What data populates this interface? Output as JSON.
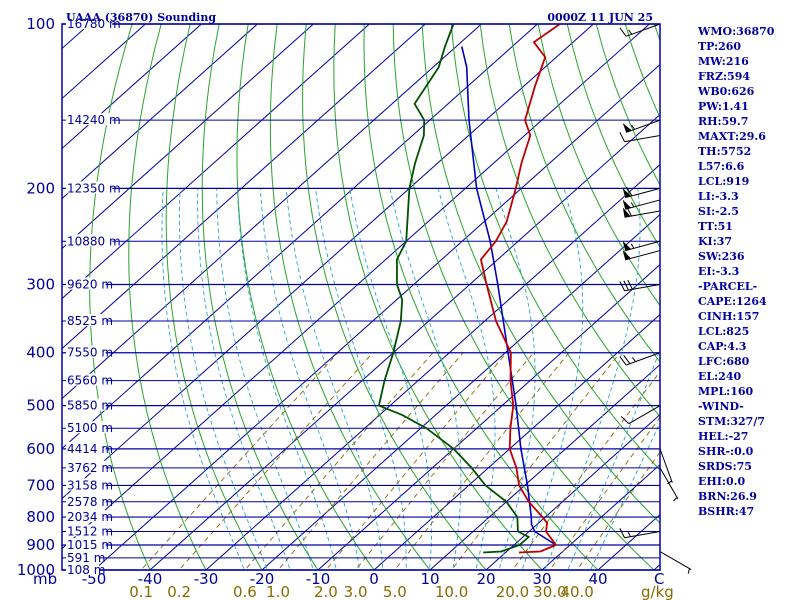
{
  "header": {
    "station_title": "UAAA (36870) Sounding",
    "time_title": "0000Z 11 JUN 25"
  },
  "colors": {
    "frame": "#0000a0",
    "isobar": "#0000a0",
    "isotherm": "#0000a0",
    "dry_adiabat": "#2aa52a",
    "moist_adiabat": "#2aa5c8",
    "mixing_ratio": "#8a6a00",
    "temperature": "#c00000",
    "dewpoint": "#005000",
    "parcel": "#0000c0",
    "wind": "#000000"
  },
  "chart_data": {
    "type": "skew-t",
    "pressure_unit_label": "mb",
    "pressure_ticks": [
      100,
      200,
      300,
      400,
      500,
      600,
      700,
      800,
      900,
      1000
    ],
    "temperature_ticks": [
      "-50",
      "-40",
      "-30",
      "-20",
      "-10",
      "0",
      "10",
      "20",
      "30",
      "40"
    ],
    "temperature_unit_label": "C",
    "mixing_ratio_ticks": [
      "0.1",
      "0.2",
      "0.6",
      "1.0",
      "2.0",
      "3.0",
      "5.0",
      "10.0",
      "20.0",
      "30.0",
      "40.0"
    ],
    "mixing_ratio_unit_label": "g/kg",
    "height_labels": [
      {
        "p": 100,
        "text": "16780 m"
      },
      {
        "p": 150,
        "text": "14240 m"
      },
      {
        "p": 200,
        "text": "12350 m"
      },
      {
        "p": 250,
        "text": "10880 m"
      },
      {
        "p": 300,
        "text": "9620 m"
      },
      {
        "p": 350,
        "text": "8525 m"
      },
      {
        "p": 400,
        "text": "7550 m"
      },
      {
        "p": 450,
        "text": "6560 m"
      },
      {
        "p": 500,
        "text": "5850 m"
      },
      {
        "p": 550,
        "text": "5100 m"
      },
      {
        "p": 600,
        "text": "4414 m"
      },
      {
        "p": 650,
        "text": "3762 m"
      },
      {
        "p": 700,
        "text": "3158 m"
      },
      {
        "p": 750,
        "text": "2578 m"
      },
      {
        "p": 800,
        "text": "2034 m"
      },
      {
        "p": 850,
        "text": "1512 m"
      },
      {
        "p": 900,
        "text": "1015 m"
      },
      {
        "p": 950,
        "text": "591 m"
      },
      {
        "p": 1000,
        "text": "108 m"
      }
    ],
    "temperature_profile": [
      {
        "p": 929,
        "t": 22.4
      },
      {
        "p": 925,
        "t": 26.0
      },
      {
        "p": 900,
        "t": 27.5
      },
      {
        "p": 850,
        "t": 23.0
      },
      {
        "p": 820,
        "t": 21.5
      },
      {
        "p": 800,
        "t": 19.5
      },
      {
        "p": 750,
        "t": 14.0
      },
      {
        "p": 700,
        "t": 9.0
      },
      {
        "p": 650,
        "t": 5.0
      },
      {
        "p": 600,
        "t": 0.0
      },
      {
        "p": 550,
        "t": -4.0
      },
      {
        "p": 500,
        "t": -8.0
      },
      {
        "p": 450,
        "t": -13.5
      },
      {
        "p": 400,
        "t": -19.0
      },
      {
        "p": 350,
        "t": -28.0
      },
      {
        "p": 300,
        "t": -37.0
      },
      {
        "p": 270,
        "t": -43.0
      },
      {
        "p": 250,
        "t": -44.0
      },
      {
        "p": 230,
        "t": -46.0
      },
      {
        "p": 200,
        "t": -51.0
      },
      {
        "p": 180,
        "t": -55.0
      },
      {
        "p": 160,
        "t": -59.0
      },
      {
        "p": 150,
        "t": -63.0
      },
      {
        "p": 130,
        "t": -68.0
      },
      {
        "p": 115,
        "t": -72.0
      },
      {
        "p": 108,
        "t": -77.0
      },
      {
        "p": 100,
        "t": -76.0
      }
    ],
    "dewpoint_profile": [
      {
        "p": 929,
        "t": 16.0
      },
      {
        "p": 925,
        "t": 19.0
      },
      {
        "p": 900,
        "t": 21.0
      },
      {
        "p": 870,
        "t": 21.0
      },
      {
        "p": 850,
        "t": 18.0
      },
      {
        "p": 800,
        "t": 15.0
      },
      {
        "p": 750,
        "t": 10.0
      },
      {
        "p": 700,
        "t": 3.0
      },
      {
        "p": 650,
        "t": -3.0
      },
      {
        "p": 600,
        "t": -10.0
      },
      {
        "p": 550,
        "t": -19.0
      },
      {
        "p": 520,
        "t": -26.0
      },
      {
        "p": 500,
        "t": -32.0
      },
      {
        "p": 450,
        "t": -36.0
      },
      {
        "p": 400,
        "t": -40.0
      },
      {
        "p": 350,
        "t": -45.0
      },
      {
        "p": 320,
        "t": -49.0
      },
      {
        "p": 300,
        "t": -53.0
      },
      {
        "p": 270,
        "t": -58.0
      },
      {
        "p": 250,
        "t": -60.0
      },
      {
        "p": 200,
        "t": -70.0
      },
      {
        "p": 180,
        "t": -74.0
      },
      {
        "p": 160,
        "t": -78.0
      },
      {
        "p": 150,
        "t": -81.0
      },
      {
        "p": 140,
        "t": -86.0
      },
      {
        "p": 120,
        "t": -89.0
      },
      {
        "p": 110,
        "t": -92.0
      },
      {
        "p": 100,
        "t": -95.0
      }
    ],
    "parcel_profile": [
      {
        "p": 900,
        "t": 27.5
      },
      {
        "p": 850,
        "t": 21.0
      },
      {
        "p": 825,
        "t": 19.0
      },
      {
        "p": 800,
        "t": 17.5
      },
      {
        "p": 700,
        "t": 10.5
      },
      {
        "p": 600,
        "t": 2.0
      },
      {
        "p": 500,
        "t": -7.5
      },
      {
        "p": 400,
        "t": -19.5
      },
      {
        "p": 300,
        "t": -35.0
      },
      {
        "p": 250,
        "t": -45.0
      },
      {
        "p": 200,
        "t": -58.0
      },
      {
        "p": 150,
        "t": -73.0
      },
      {
        "p": 120,
        "t": -84.0
      },
      {
        "p": 110,
        "t": -89.0
      }
    ],
    "wind_barbs": [
      {
        "p": 100,
        "dir": 250,
        "spd": 15
      },
      {
        "p": 150,
        "dir": 250,
        "spd": 55
      },
      {
        "p": 160,
        "dir": 260,
        "spd": 10
      },
      {
        "p": 200,
        "dir": 255,
        "spd": 60
      },
      {
        "p": 210,
        "dir": 255,
        "spd": 55
      },
      {
        "p": 220,
        "dir": 260,
        "spd": 60
      },
      {
        "p": 250,
        "dir": 255,
        "spd": 55
      },
      {
        "p": 260,
        "dir": 255,
        "spd": 50
      },
      {
        "p": 300,
        "dir": 260,
        "spd": 30
      },
      {
        "p": 400,
        "dir": 250,
        "spd": 25
      },
      {
        "p": 500,
        "dir": 240,
        "spd": 10
      },
      {
        "p": 600,
        "dir": 160,
        "spd": 5
      },
      {
        "p": 650,
        "dir": 150,
        "spd": 5
      },
      {
        "p": 850,
        "dir": 260,
        "spd": 15
      },
      {
        "p": 925,
        "dir": 120,
        "spd": 5
      }
    ]
  },
  "indices": [
    "WMO:36870",
    "TP:260",
    "MW:216",
    "FRZ:594",
    "WB0:626",
    "PW:1.41",
    "RH:59.7",
    "MAXT:29.6",
    "TH:5752",
    "L57:6.6",
    "LCL:919",
    "LI:-3.3",
    "SI:-2.5",
    "TT:51",
    "KI:37",
    "SW:236",
    "EI:-3.3",
    "-PARCEL-",
    "CAPE:1264",
    "CINH:157",
    "LCL:825",
    "CAP:4.3",
    "LFC:680",
    "EL:240",
    "MPL:160",
    "-WIND-",
    "STM:327/7",
    "HEL:-27",
    "SHR-:0.0",
    "SRDS:75",
    "EHI:0.0",
    "BRN:26.9",
    "BSHR:47"
  ]
}
